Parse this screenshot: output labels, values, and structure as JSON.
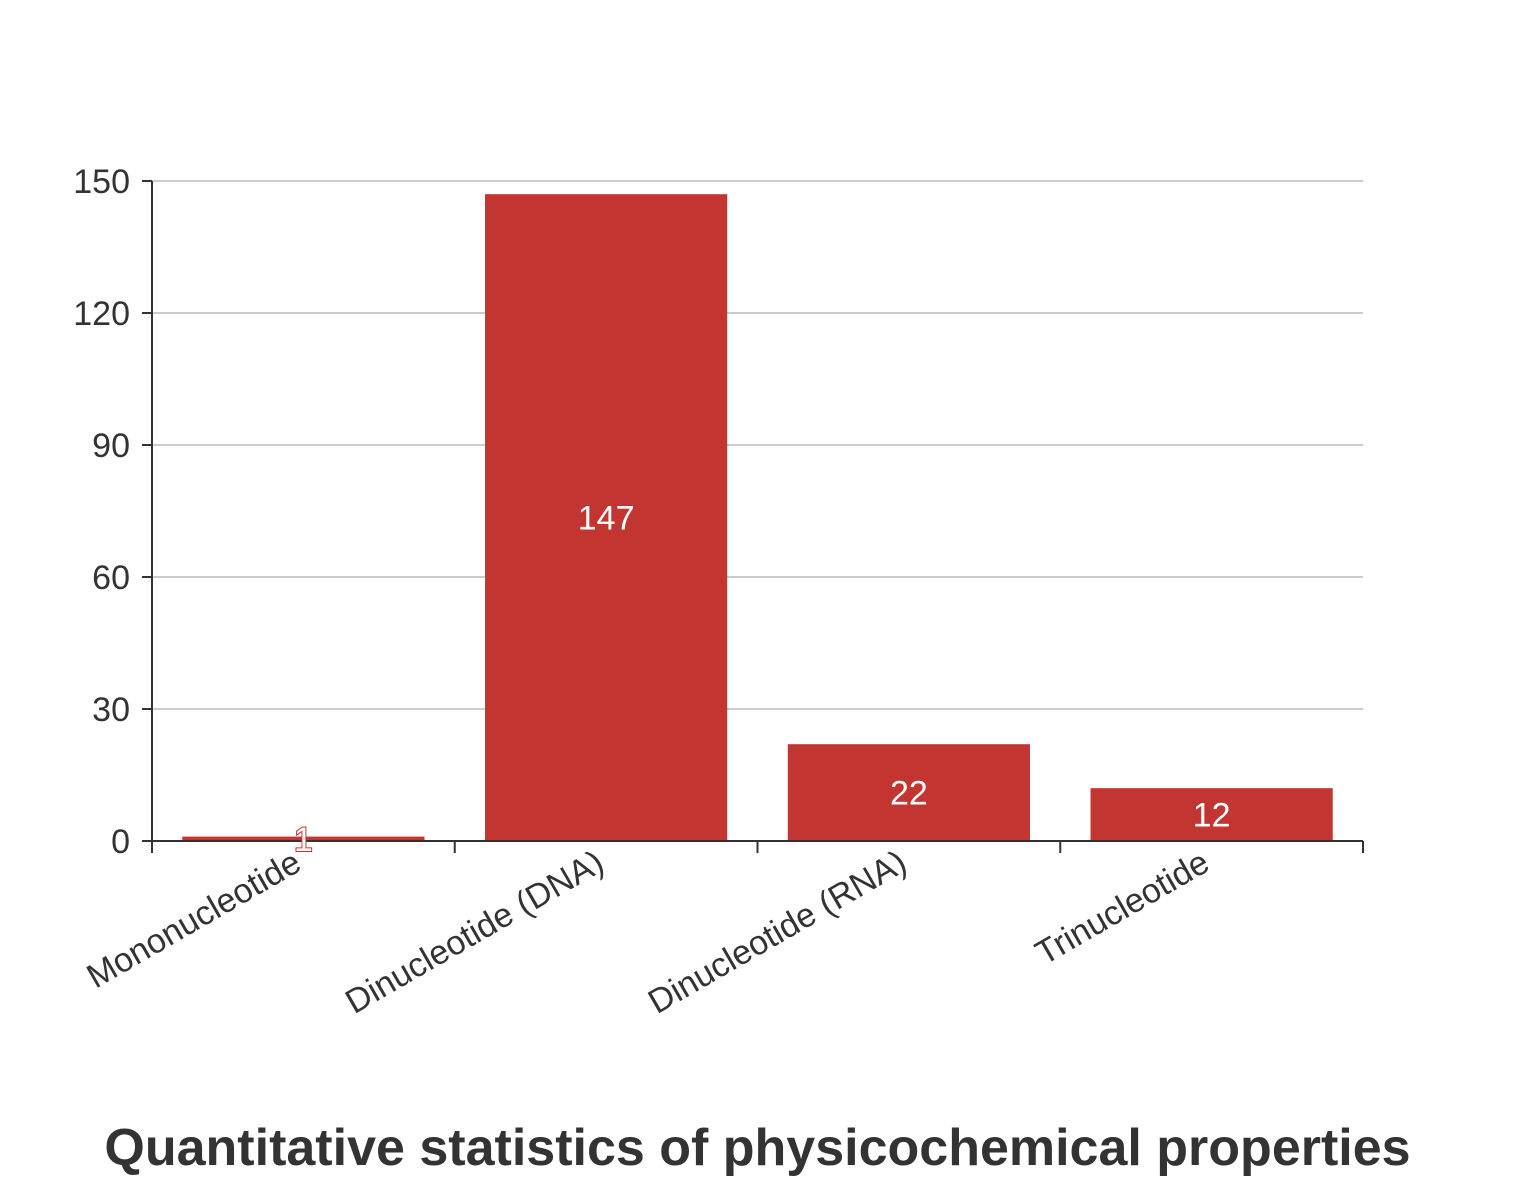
{
  "chart_data": {
    "type": "bar",
    "title": "Quantitative statistics of physicochemical properties",
    "categories": [
      "Mononucleotide",
      "Dinucleotide (DNA)",
      "Dinucleotide (RNA)",
      "Trinucleotide"
    ],
    "values": [
      1,
      147,
      22,
      12
    ],
    "ylim": [
      0,
      150
    ],
    "yticks": [
      0,
      30,
      60,
      90,
      120,
      150
    ],
    "grid": true,
    "legend": false,
    "xlabel": "",
    "ylabel": ""
  },
  "colors": {
    "bar": "#c23531",
    "label_inside": "#ffffff",
    "axis": "#333333",
    "grid": "#cccccc",
    "text": "#333333"
  }
}
